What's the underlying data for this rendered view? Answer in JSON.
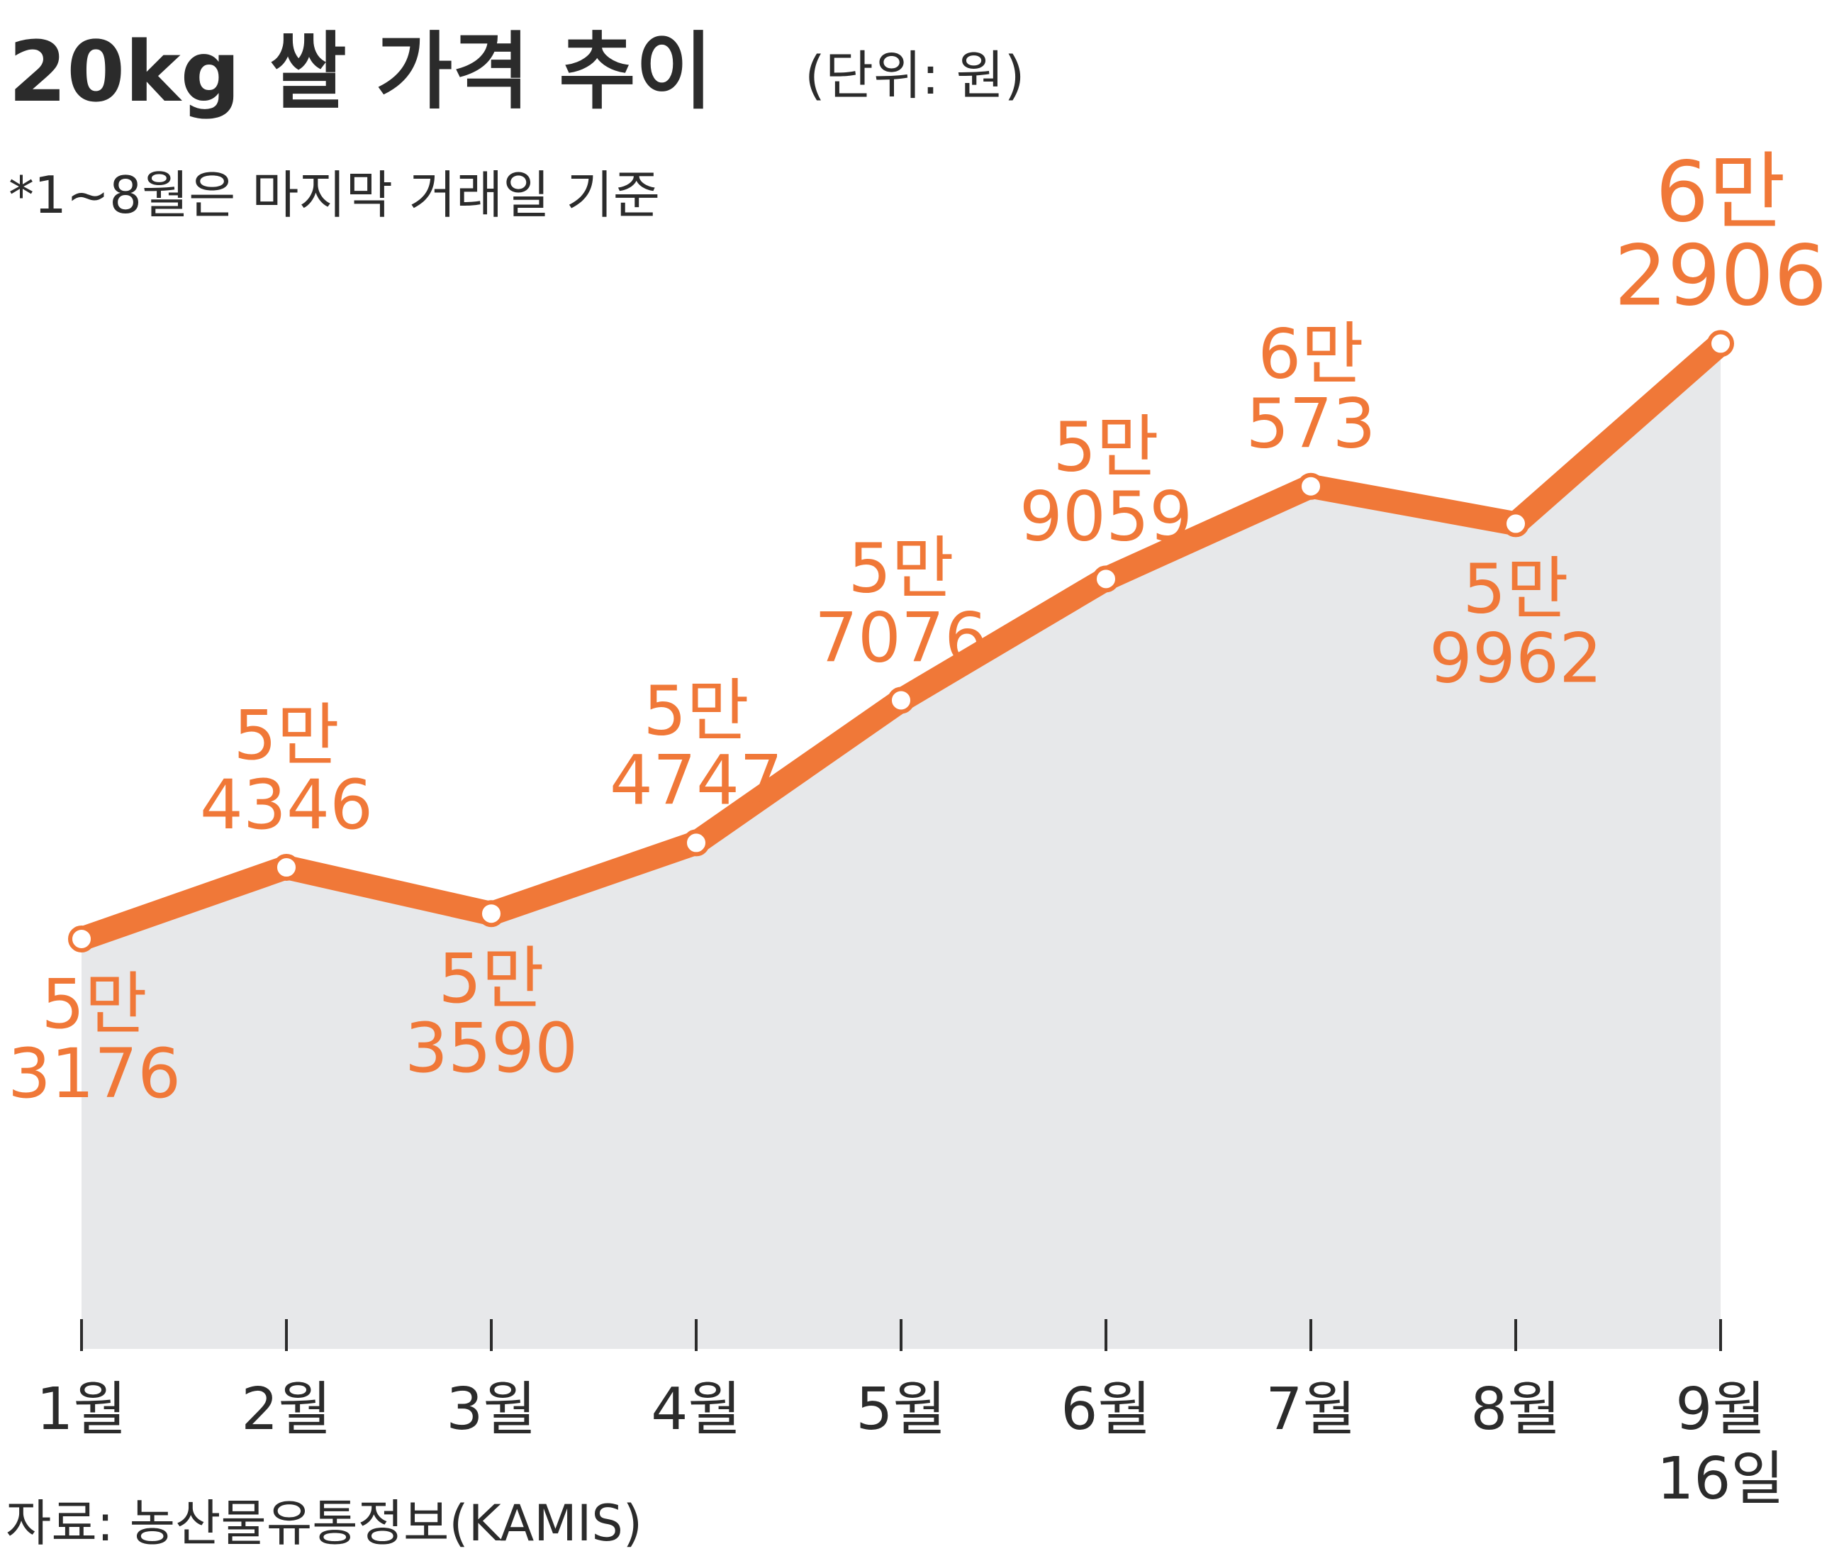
{
  "title": "20kg 쌀 가격 추이",
  "unit_note": "(단위: 원)",
  "footnote": "*1~8월은 마지막 거래일 기준",
  "source": "자료: 농산물유통정보(KAMIS)",
  "colors": {
    "line": "#f07838",
    "area": "#e7e8ea",
    "text": "#2b2b2b",
    "label": "#f07838"
  },
  "chart_data": {
    "type": "area",
    "categories": [
      "1월",
      "2월",
      "3월",
      "4월",
      "5월",
      "6월",
      "7월",
      "8월",
      "9월 16일"
    ],
    "category_lines": [
      [
        "1월"
      ],
      [
        "2월"
      ],
      [
        "3월"
      ],
      [
        "4월"
      ],
      [
        "5월"
      ],
      [
        "6월"
      ],
      [
        "7월"
      ],
      [
        "8월"
      ],
      [
        "9월",
        "16일"
      ]
    ],
    "series": [
      {
        "values": [
          53176,
          54346,
          53590,
          54747,
          57076,
          59059,
          60573,
          59962,
          62906
        ]
      }
    ],
    "data_labels": [
      [
        "5만",
        "3176"
      ],
      [
        "5만",
        "4346"
      ],
      [
        "5만",
        "3590"
      ],
      [
        "5만",
        "4747"
      ],
      [
        "5만",
        "7076"
      ],
      [
        "5만",
        "9059"
      ],
      [
        "6만",
        "573"
      ],
      [
        "5만",
        "9962"
      ],
      [
        "6만",
        "2906"
      ]
    ],
    "label_positions": [
      "below",
      "above",
      "below",
      "above",
      "above",
      "above",
      "above",
      "below",
      "above"
    ],
    "ylim": [
      46500,
      64000
    ],
    "grid": false
  }
}
